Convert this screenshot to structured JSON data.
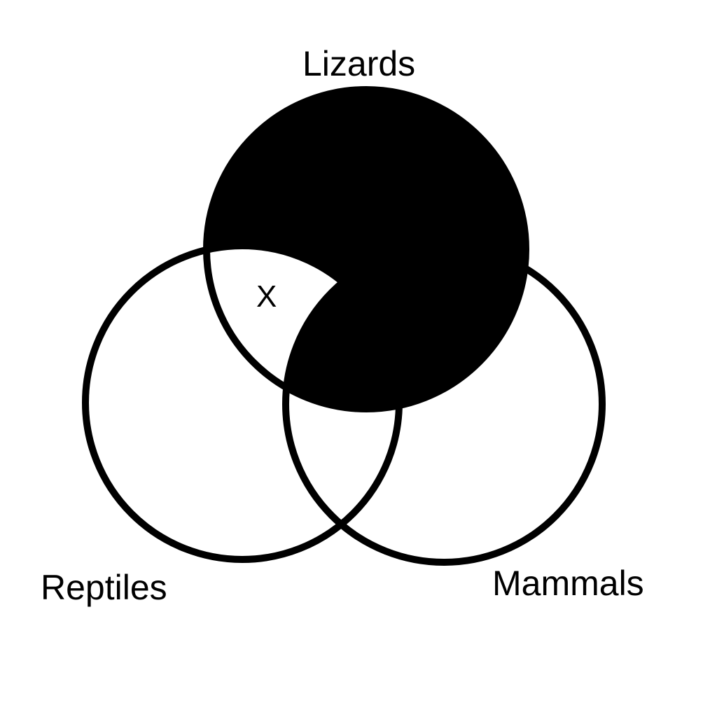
{
  "sets": {
    "lizards": {
      "label": "Lizards"
    },
    "reptiles": {
      "label": "Reptiles"
    },
    "mammals": {
      "label": "Mammals"
    }
  },
  "shading": {
    "shaded_regions": [
      "lizards-only",
      "lizards-and-mammals-only",
      "lizards-reptiles-mammals"
    ],
    "fill_color": "#000000",
    "stroke_color": "#000000"
  },
  "marker": {
    "region": "lizards-and-reptiles-only",
    "text": "X"
  }
}
